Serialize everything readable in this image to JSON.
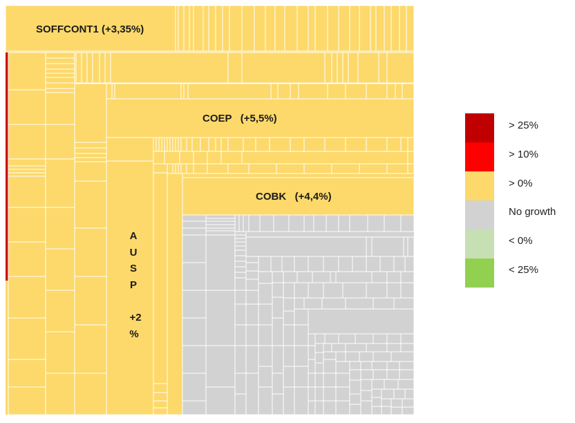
{
  "chart_data": {
    "type": "treemap",
    "colors": {
      "yellow": "#FDD96B",
      "grey": "#D2D2D2",
      "red_strip": "#CC1111",
      "border": "#FFFFFF"
    },
    "labels": {
      "soffcont1": "SOFFCONT1 (+3,35%)",
      "coep": "COEP   (+5,5%)",
      "cobk": "COBK   (+4,4%)",
      "ausp_lines": [
        "A",
        "U",
        "S",
        "P",
        "",
        "+2",
        "%"
      ]
    },
    "nodes": [
      {
        "name": "SOFFCONT1",
        "growth_pct": 3.35,
        "category": "> 0%"
      },
      {
        "name": "COEP",
        "growth_pct": 5.5,
        "category": "> 0%"
      },
      {
        "name": "COBK",
        "growth_pct": 4.4,
        "category": "> 0%"
      },
      {
        "name": "AUSP",
        "growth_pct": 2,
        "category": "> 0%"
      }
    ],
    "legend": {
      "placement": "right",
      "items": [
        {
          "label": "> 25%",
          "color": "#C00000"
        },
        {
          "label": "> 10%",
          "color": "#FF0000"
        },
        {
          "label": "> 0%",
          "color": "#FDD96B"
        },
        {
          "label": "No growth",
          "color": "#D2D2D2"
        },
        {
          "label": "< 0%",
          "color": "#C6E0B4"
        },
        {
          "label": "< 25%",
          "color": "#92D050"
        }
      ]
    }
  }
}
